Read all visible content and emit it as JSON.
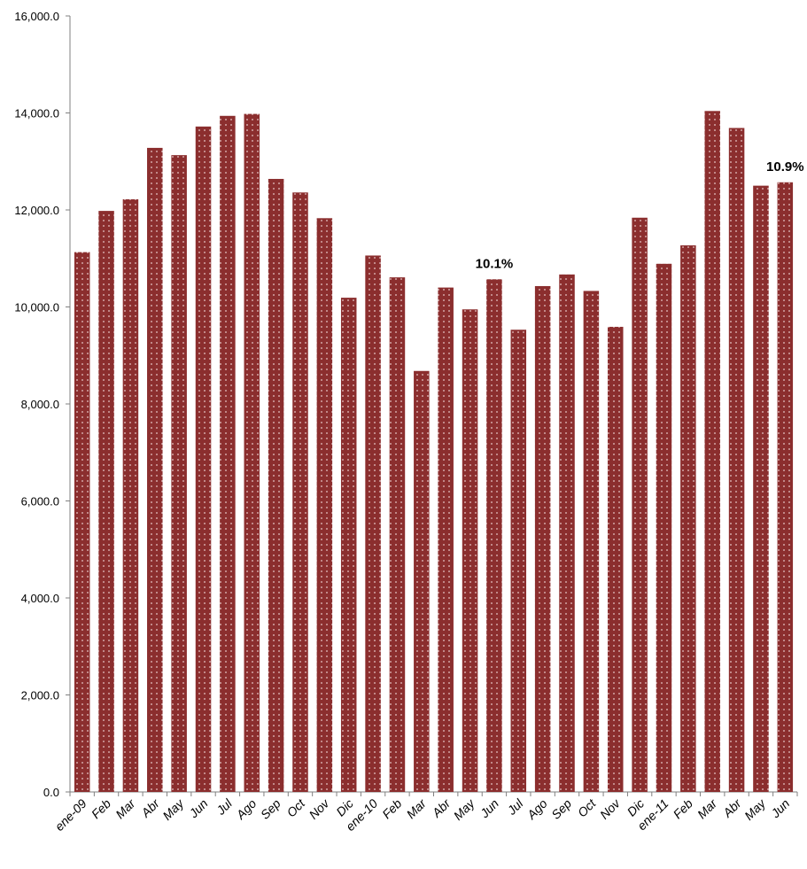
{
  "chart_data": {
    "type": "bar",
    "title": "",
    "xlabel": "",
    "ylabel": "",
    "ylim": [
      0,
      16000
    ],
    "yticks": [
      0,
      2000,
      4000,
      6000,
      8000,
      10000,
      12000,
      14000,
      16000
    ],
    "ytick_labels": [
      "0.0",
      "2,000.0",
      "4,000.0",
      "6,000.0",
      "8,000.0",
      "10,000.0",
      "12,000.0",
      "14,000.0",
      "16,000.0"
    ],
    "grid": false,
    "legend": "none",
    "bar_color": "#8B2E2E",
    "categories": [
      "ene-09",
      "Feb",
      "Mar",
      "Abr",
      "May",
      "Jun",
      "Jul",
      "Ago",
      "Sep",
      "Oct",
      "Nov",
      "Dic",
      "ene-10",
      "Feb",
      "Mar",
      "Abr",
      "May",
      "Jun",
      "Jul",
      "Ago",
      "Sep",
      "Oct",
      "Nov",
      "Dic",
      "ene-11",
      "Feb",
      "Mar",
      "Abr",
      "May",
      "Jun"
    ],
    "values": [
      11130,
      11980,
      12220,
      13280,
      13130,
      13720,
      13940,
      13980,
      12640,
      12360,
      11830,
      10190,
      11060,
      10610,
      8680,
      10400,
      9950,
      10570,
      9530,
      10430,
      10670,
      10330,
      9590,
      11840,
      10890,
      11270,
      14040,
      13690,
      12500,
      12570
    ],
    "annotations": [
      {
        "index": 17,
        "text": "10.1%"
      },
      {
        "index": 29,
        "text": "10.9%"
      }
    ]
  }
}
